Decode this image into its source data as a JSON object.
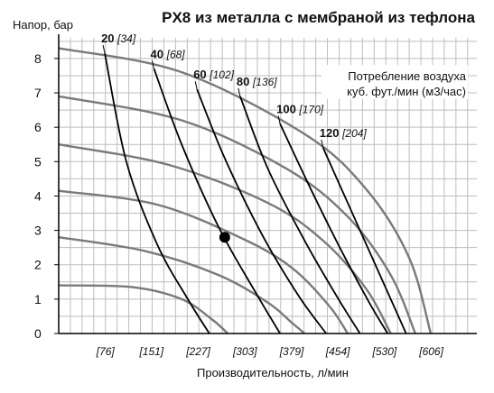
{
  "chart_data": {
    "type": "line",
    "title": "PX8 из металла с мембраной из тефлона",
    "ylabel": "Напор, бар",
    "xlabel": "Производительность, л/мин",
    "legend_note": [
      "Потребление воздуха",
      "куб. фут./мин (м3/час)"
    ],
    "xlim": [
      0,
      680
    ],
    "ylim": [
      0,
      8.6
    ],
    "y_ticks": [
      "0",
      "1",
      "2",
      "3",
      "4",
      "5",
      "6",
      "7",
      "8"
    ],
    "x_ticks": [
      {
        "value": 76,
        "label": "[76]"
      },
      {
        "value": 151,
        "label": "[151]"
      },
      {
        "value": 227,
        "label": "[227]"
      },
      {
        "value": 303,
        "label": "[303]"
      },
      {
        "value": 379,
        "label": "[379]"
      },
      {
        "value": 454,
        "label": "[454]"
      },
      {
        "value": 530,
        "label": "[530]"
      },
      {
        "value": 606,
        "label": "[606]"
      }
    ],
    "pressure_curves": [
      {
        "x": [
          0,
          120,
          200,
          250,
          275
        ],
        "y": [
          1.4,
          1.35,
          1.0,
          0.4,
          0
        ]
      },
      {
        "x": [
          0,
          140,
          260,
          340,
          380,
          400
        ],
        "y": [
          2.8,
          2.4,
          1.7,
          0.9,
          0.3,
          0
        ]
      },
      {
        "x": [
          0,
          160,
          300,
          380,
          440,
          470
        ],
        "y": [
          4.15,
          3.75,
          2.75,
          1.9,
          0.8,
          0
        ]
      },
      {
        "x": [
          0,
          180,
          340,
          430,
          500,
          540
        ],
        "y": [
          5.5,
          4.9,
          3.8,
          2.7,
          1.3,
          0
        ]
      },
      {
        "x": [
          0,
          200,
          370,
          470,
          540,
          580
        ],
        "y": [
          6.9,
          6.2,
          4.8,
          3.4,
          1.7,
          0
        ]
      },
      {
        "x": [
          0,
          200,
          400,
          500,
          570,
          605
        ],
        "y": [
          8.3,
          7.6,
          5.8,
          4.2,
          2.2,
          0
        ]
      }
    ],
    "air_curves": [
      {
        "label_bold": "20",
        "label_italic": "[34]",
        "x": [
          75,
          110,
          160,
          210,
          245
        ],
        "y": [
          8.15,
          5.0,
          2.6,
          1.0,
          0
        ]
      },
      {
        "label_bold": "40",
        "label_italic": "[68]",
        "x": [
          155,
          200,
          260,
          320,
          360
        ],
        "y": [
          7.7,
          5.5,
          3.1,
          1.2,
          0
        ]
      },
      {
        "label_bold": "60",
        "label_italic": "[102]",
        "x": [
          225,
          270,
          330,
          390,
          435
        ],
        "y": [
          7.1,
          5.1,
          2.9,
          1.1,
          0
        ]
      },
      {
        "label_bold": "80",
        "label_italic": "[136]",
        "x": [
          295,
          340,
          400,
          455,
          490
        ],
        "y": [
          6.9,
          4.8,
          2.7,
          1.0,
          0
        ]
      },
      {
        "label_bold": "100",
        "label_italic": "[170]",
        "x": [
          360,
          410,
          460,
          505,
          535
        ],
        "y": [
          6.1,
          4.2,
          2.4,
          0.9,
          0
        ]
      },
      {
        "label_bold": "120",
        "label_italic": "[204]",
        "x": [
          430,
          470,
          510,
          545,
          565
        ],
        "y": [
          5.4,
          3.8,
          2.2,
          0.8,
          0
        ]
      }
    ],
    "operating_point": {
      "x": 270,
      "y": 2.8
    },
    "grid": true
  }
}
